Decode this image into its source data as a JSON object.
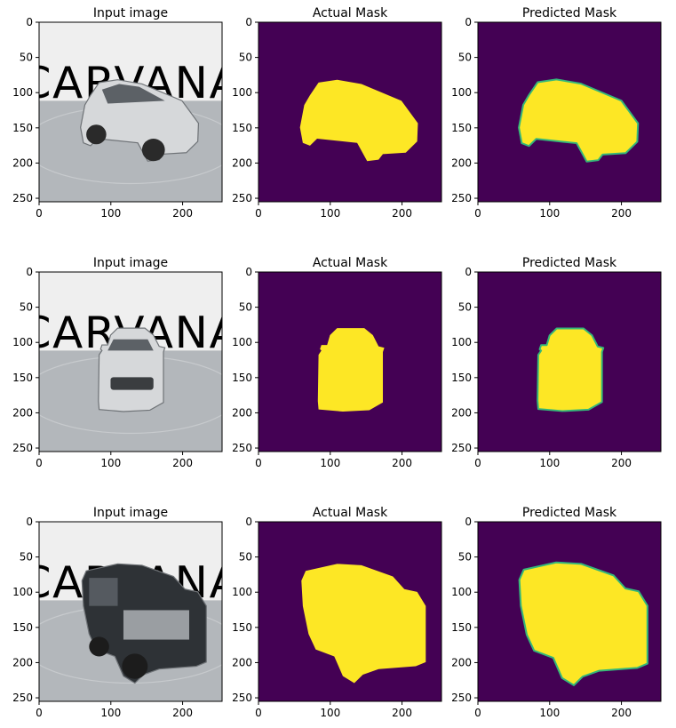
{
  "colors": {
    "mask_background": "#440154",
    "mask_foreground": "#fde725",
    "mask_edge": "#35b779",
    "floor": "#b3b7bb",
    "wall": "#efefef",
    "logo_text": "#5a5a5a"
  },
  "figure": {
    "logo_text": "CARVANA"
  },
  "chart_data": [
    {
      "type": "heatmap",
      "row": 0,
      "col": 0,
      "content": "photo",
      "vehicle": "suv",
      "title": "Input image",
      "xlim": [
        0,
        255
      ],
      "ylim": [
        255,
        0
      ],
      "xticks": [
        0,
        100,
        200
      ],
      "yticks": [
        0,
        50,
        100,
        150,
        200,
        250
      ]
    },
    {
      "type": "heatmap",
      "row": 0,
      "col": 1,
      "content": "mask",
      "vehicle": "suv",
      "title": "Actual Mask",
      "xlim": [
        0,
        255
      ],
      "ylim": [
        255,
        0
      ],
      "xticks": [
        0,
        100,
        200
      ],
      "yticks": [
        0,
        50,
        100,
        150,
        200,
        250
      ]
    },
    {
      "type": "heatmap",
      "row": 0,
      "col": 2,
      "content": "predicted",
      "vehicle": "suv",
      "title": "Predicted Mask",
      "xlim": [
        0,
        255
      ],
      "ylim": [
        255,
        0
      ],
      "xticks": [
        0,
        100,
        200
      ],
      "yticks": [
        0,
        50,
        100,
        150,
        200,
        250
      ]
    },
    {
      "type": "heatmap",
      "row": 1,
      "col": 0,
      "content": "photo",
      "vehicle": "hatchback",
      "title": "Input image",
      "xlim": [
        0,
        255
      ],
      "ylim": [
        255,
        0
      ],
      "xticks": [
        0,
        100,
        200
      ],
      "yticks": [
        0,
        50,
        100,
        150,
        200,
        250
      ]
    },
    {
      "type": "heatmap",
      "row": 1,
      "col": 1,
      "content": "mask",
      "vehicle": "hatchback",
      "title": "Actual Mask",
      "xlim": [
        0,
        255
      ],
      "ylim": [
        255,
        0
      ],
      "xticks": [
        0,
        100,
        200
      ],
      "yticks": [
        0,
        50,
        100,
        150,
        200,
        250
      ]
    },
    {
      "type": "heatmap",
      "row": 1,
      "col": 2,
      "content": "predicted",
      "vehicle": "hatchback",
      "title": "Predicted Mask",
      "xlim": [
        0,
        255
      ],
      "ylim": [
        255,
        0
      ],
      "xticks": [
        0,
        100,
        200
      ],
      "yticks": [
        0,
        50,
        100,
        150,
        200,
        250
      ]
    },
    {
      "type": "heatmap",
      "row": 2,
      "col": 0,
      "content": "photo",
      "vehicle": "truck",
      "title": "Input image",
      "xlim": [
        0,
        255
      ],
      "ylim": [
        255,
        0
      ],
      "xticks": [
        0,
        100,
        200
      ],
      "yticks": [
        0,
        50,
        100,
        150,
        200,
        250
      ]
    },
    {
      "type": "heatmap",
      "row": 2,
      "col": 1,
      "content": "mask",
      "vehicle": "truck",
      "title": "Actual Mask",
      "xlim": [
        0,
        255
      ],
      "ylim": [
        255,
        0
      ],
      "xticks": [
        0,
        100,
        200
      ],
      "yticks": [
        0,
        50,
        100,
        150,
        200,
        250
      ]
    },
    {
      "type": "heatmap",
      "row": 2,
      "col": 2,
      "content": "predicted",
      "vehicle": "truck",
      "title": "Predicted Mask",
      "xlim": [
        0,
        255
      ],
      "ylim": [
        255,
        0
      ],
      "xticks": [
        0,
        100,
        200
      ],
      "yticks": [
        0,
        50,
        100,
        150,
        200,
        250
      ]
    }
  ]
}
